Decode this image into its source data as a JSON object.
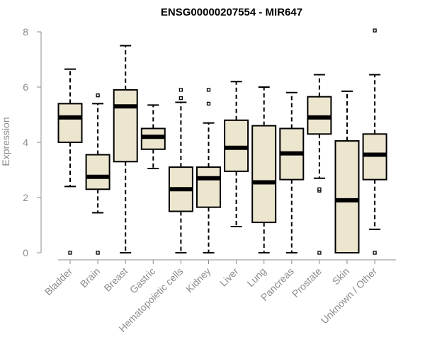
{
  "chart_data": {
    "type": "boxplot",
    "title": "ENSG00000207554 - MIR647",
    "xlabel": "",
    "ylabel": "Expression",
    "ylim": [
      0,
      8
    ],
    "yticks": [
      0,
      2,
      4,
      6,
      8
    ],
    "grid": false,
    "categories": [
      "Bladder",
      "Brain",
      "Breast",
      "Gastric",
      "Hematopoietic cells",
      "Kidney",
      "Liver",
      "Lung",
      "Pancreas",
      "Prostate",
      "Skin",
      "Unknown / Other"
    ],
    "boxes": [
      {
        "name": "Bladder",
        "whisker_low": 2.4,
        "q1": 4.0,
        "median": 4.9,
        "q3": 5.4,
        "whisker_high": 6.65,
        "outliers": [
          0.0
        ]
      },
      {
        "name": "Brain",
        "whisker_low": 1.45,
        "q1": 2.3,
        "median": 2.75,
        "q3": 3.55,
        "whisker_high": 5.4,
        "outliers": [
          0.0,
          5.7
        ]
      },
      {
        "name": "Breast",
        "whisker_low": 0.0,
        "q1": 3.3,
        "median": 5.3,
        "q3": 5.9,
        "whisker_high": 7.5,
        "outliers": []
      },
      {
        "name": "Gastric",
        "whisker_low": 3.05,
        "q1": 3.75,
        "median": 4.2,
        "q3": 4.5,
        "whisker_high": 5.35,
        "outliers": []
      },
      {
        "name": "Hematopoietic cells",
        "whisker_low": 0.0,
        "q1": 1.5,
        "median": 2.3,
        "q3": 3.1,
        "whisker_high": 5.45,
        "outliers": [
          5.6,
          5.9
        ]
      },
      {
        "name": "Kidney",
        "whisker_low": 0.0,
        "q1": 1.65,
        "median": 2.7,
        "q3": 3.1,
        "whisker_high": 4.7,
        "outliers": [
          5.4,
          5.9
        ]
      },
      {
        "name": "Liver",
        "whisker_low": 0.95,
        "q1": 2.95,
        "median": 3.8,
        "q3": 4.8,
        "whisker_high": 6.2,
        "outliers": []
      },
      {
        "name": "Lung",
        "whisker_low": 0.0,
        "q1": 1.1,
        "median": 2.55,
        "q3": 4.6,
        "whisker_high": 6.0,
        "outliers": []
      },
      {
        "name": "Pancreas",
        "whisker_low": 0.0,
        "q1": 2.65,
        "median": 3.6,
        "q3": 4.5,
        "whisker_high": 5.8,
        "outliers": []
      },
      {
        "name": "Prostate",
        "whisker_low": 2.7,
        "q1": 4.3,
        "median": 4.9,
        "q3": 5.65,
        "whisker_high": 6.45,
        "outliers": [
          0.0,
          2.25,
          2.3
        ]
      },
      {
        "name": "Skin",
        "whisker_low": 0.0,
        "q1": 0.0,
        "median": 1.9,
        "q3": 4.05,
        "whisker_high": 5.85,
        "outliers": []
      },
      {
        "name": "Unknown / Other",
        "whisker_low": 0.85,
        "q1": 2.65,
        "median": 3.55,
        "q3": 4.3,
        "whisker_high": 6.45,
        "outliers": [
          0.0,
          8.05
        ]
      }
    ],
    "colors": {
      "box_fill": "#ede6cf",
      "box_stroke": "#000000",
      "median": "#000000",
      "axis": "#8c8c8c"
    }
  }
}
